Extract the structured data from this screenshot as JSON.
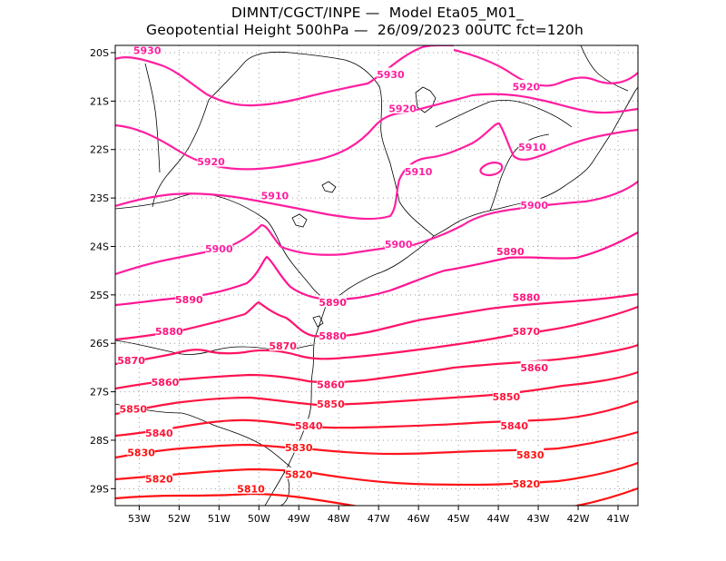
{
  "header": {
    "line1": "DIMNT/CGCT/INPE —  Model Eta05_M01_",
    "line2": "Geopotential Height 500hPa —  26/09/2023 00UTC fct=120h"
  },
  "map": {
    "lon_range": [
      -53.6,
      -40.5
    ],
    "lat_range": [
      -29.35,
      -19.85
    ],
    "lon_ticks": [
      {
        "value": -53,
        "label": "53W"
      },
      {
        "value": -52,
        "label": "52W"
      },
      {
        "value": -51,
        "label": "51W"
      },
      {
        "value": -50,
        "label": "50W"
      },
      {
        "value": -49,
        "label": "49W"
      },
      {
        "value": -48,
        "label": "48W"
      },
      {
        "value": -47,
        "label": "47W"
      },
      {
        "value": -46,
        "label": "46W"
      },
      {
        "value": -45,
        "label": "45W"
      },
      {
        "value": -44,
        "label": "44W"
      },
      {
        "value": -43,
        "label": "43W"
      },
      {
        "value": -42,
        "label": "42W"
      },
      {
        "value": -41,
        "label": "41W"
      }
    ],
    "lat_ticks": [
      {
        "value": -20,
        "label": "20S"
      },
      {
        "value": -21,
        "label": "21S"
      },
      {
        "value": -22,
        "label": "22S"
      },
      {
        "value": -23,
        "label": "23S"
      },
      {
        "value": -24,
        "label": "24S"
      },
      {
        "value": -25,
        "label": "25S"
      },
      {
        "value": -26,
        "label": "26S"
      },
      {
        "value": -27,
        "label": "27S"
      },
      {
        "value": -28,
        "label": "28S"
      },
      {
        "value": -29,
        "label": "29S"
      }
    ],
    "grid": "dotted",
    "contour_labels": [
      {
        "text": "5930",
        "lon": -52.8,
        "lat": -19.95
      },
      {
        "text": "5930",
        "lon": -46.7,
        "lat": -20.45
      },
      {
        "text": "5920",
        "lon": -43.3,
        "lat": -20.7
      },
      {
        "text": "5920",
        "lon": -46.4,
        "lat": -21.15
      },
      {
        "text": "5910",
        "lon": -46.0,
        "lat": -22.45
      },
      {
        "text": "5910",
        "lon": -43.15,
        "lat": -21.95
      },
      {
        "text": "5920",
        "lon": -51.2,
        "lat": -22.25
      },
      {
        "text": "5910",
        "lon": -49.6,
        "lat": -22.95
      },
      {
        "text": "5900",
        "lon": -43.1,
        "lat": -23.15
      },
      {
        "text": "5900",
        "lon": -51.0,
        "lat": -24.05
      },
      {
        "text": "5900",
        "lon": -46.5,
        "lat": -23.95
      },
      {
        "text": "5890",
        "lon": -43.7,
        "lat": -24.1
      },
      {
        "text": "5890",
        "lon": -51.75,
        "lat": -25.1
      },
      {
        "text": "5890",
        "lon": -48.15,
        "lat": -25.15
      },
      {
        "text": "5880",
        "lon": -43.3,
        "lat": -25.05
      },
      {
        "text": "5880",
        "lon": -52.25,
        "lat": -25.75
      },
      {
        "text": "5880",
        "lon": -48.15,
        "lat": -25.85
      },
      {
        "text": "5870",
        "lon": -43.3,
        "lat": -25.75
      },
      {
        "text": "5870",
        "lon": -53.2,
        "lat": -26.35
      },
      {
        "text": "5870",
        "lon": -49.4,
        "lat": -26.05
      },
      {
        "text": "5860",
        "lon": -52.35,
        "lat": -26.8
      },
      {
        "text": "5860",
        "lon": -48.2,
        "lat": -26.85
      },
      {
        "text": "5860",
        "lon": -43.1,
        "lat": -26.5
      },
      {
        "text": "5850",
        "lon": -53.15,
        "lat": -27.35
      },
      {
        "text": "5850",
        "lon": -48.2,
        "lat": -27.25
      },
      {
        "text": "5850",
        "lon": -43.8,
        "lat": -27.1
      },
      {
        "text": "5840",
        "lon": -52.5,
        "lat": -27.85
      },
      {
        "text": "5840",
        "lon": -48.75,
        "lat": -27.7
      },
      {
        "text": "5840",
        "lon": -43.6,
        "lat": -27.7
      },
      {
        "text": "5830",
        "lon": -52.95,
        "lat": -28.25
      },
      {
        "text": "5830",
        "lon": -49.0,
        "lat": -28.15
      },
      {
        "text": "5830",
        "lon": -43.2,
        "lat": -28.3
      },
      {
        "text": "5820",
        "lon": -52.5,
        "lat": -28.8
      },
      {
        "text": "5820",
        "lon": -49.0,
        "lat": -28.7
      },
      {
        "text": "5820",
        "lon": -43.3,
        "lat": -28.9
      },
      {
        "text": "5810",
        "lon": -50.2,
        "lat": -29.0
      }
    ]
  }
}
